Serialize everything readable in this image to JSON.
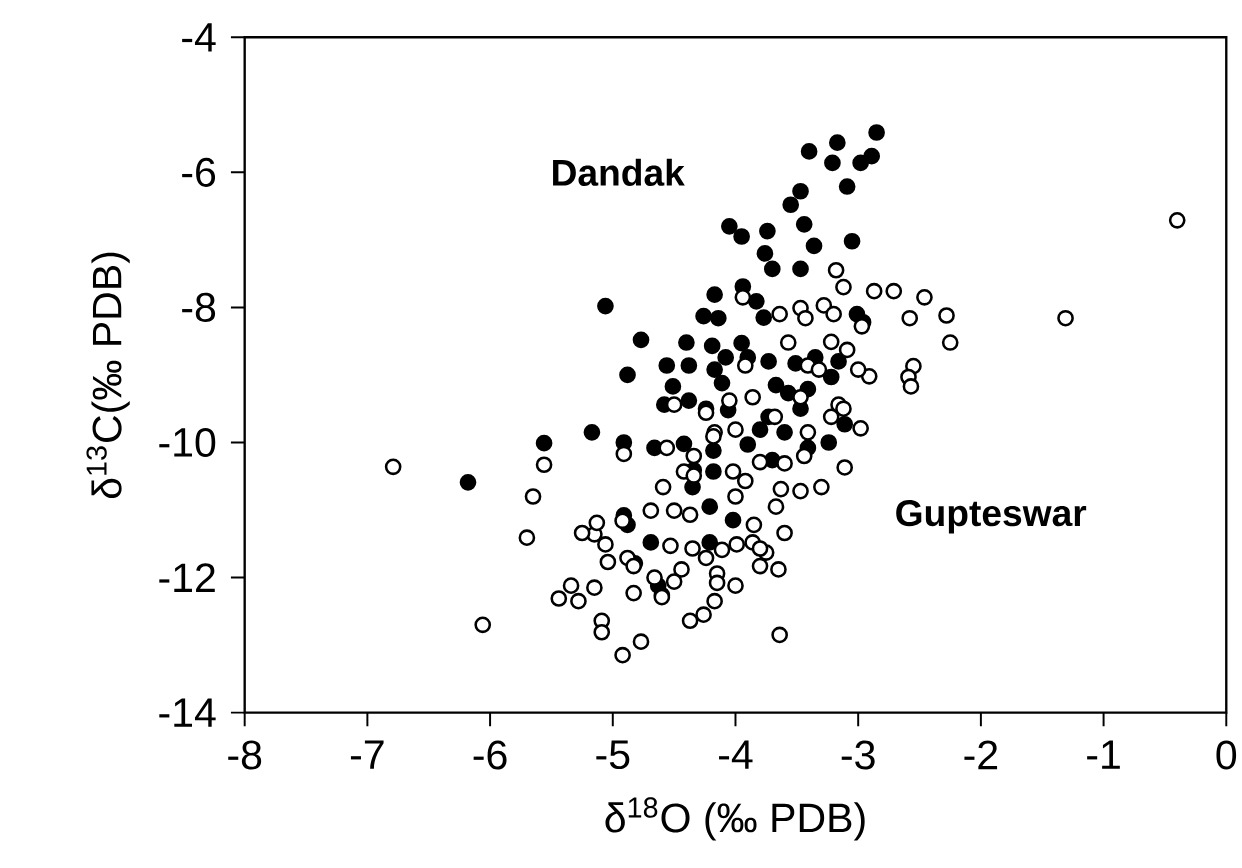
{
  "chart_data": {
    "type": "scatter",
    "xlabel": "δ$^{18}$O (‰ PDB)",
    "ylabel": "δ$^{13}$C(‰ PDB)",
    "xlim": [
      -8,
      0
    ],
    "ylim": [
      -14,
      -4
    ],
    "xticks": [
      -8,
      -7,
      -6,
      -5,
      -4,
      -3,
      -2,
      -1,
      0
    ],
    "yticks": [
      -14,
      -12,
      -10,
      -8,
      -6,
      -4
    ],
    "grid": false,
    "series": [
      {
        "name": "Dandak",
        "color": "#000000",
        "x": [
          -2.85,
          -3.17,
          -3.4,
          -2.89,
          -2.98,
          -3.21,
          -3.09,
          -3.47,
          -3.55,
          -3.44,
          -4.05,
          -3.74,
          -3.95,
          -3.05,
          -3.36,
          -3.76,
          -3.7,
          -3.47,
          -3.94,
          -4.17,
          -5.06,
          -3.83,
          -4.26,
          -4.14,
          -3.77,
          -3.01,
          -2.96,
          -4.77,
          -4.4,
          -4.19,
          -3.95,
          -3.9,
          -4.08,
          -4.56,
          -4.38,
          -4.17,
          -3.73,
          -3.51,
          -3.35,
          -3.16,
          -4.88,
          -4.11,
          -4.51,
          -3.67,
          -3.41,
          -3.22,
          -4.38,
          -4.24,
          -4.06,
          -4.58,
          -3.73,
          -3.47,
          -3.8,
          -3.6,
          -5.17,
          -5.56,
          -4.66,
          -4.42,
          -4.18,
          -3.9,
          -3.41,
          -3.24,
          -6.18,
          -4.34,
          -4.18,
          -4.91,
          -4.88,
          -4.21,
          -4.02,
          -4.69,
          -4.21,
          -4.82,
          -4.63,
          -4.6,
          -4.35,
          -4.91,
          -3.7,
          -3.11,
          -3.57
        ],
        "values": [
          -5.41,
          -5.56,
          -5.69,
          -5.76,
          -5.86,
          -5.86,
          -6.21,
          -6.28,
          -6.48,
          -6.77,
          -6.8,
          -6.87,
          -6.95,
          -7.02,
          -7.09,
          -7.2,
          -7.43,
          -7.43,
          -7.69,
          -7.81,
          -7.98,
          -7.91,
          -8.13,
          -8.16,
          -8.15,
          -8.1,
          -8.22,
          -8.48,
          -8.52,
          -8.57,
          -8.53,
          -8.74,
          -8.74,
          -8.86,
          -8.86,
          -8.92,
          -8.8,
          -8.83,
          -8.74,
          -8.8,
          -9.0,
          -9.12,
          -9.17,
          -9.15,
          -9.21,
          -9.03,
          -9.38,
          -9.5,
          -9.52,
          -9.44,
          -9.62,
          -9.5,
          -9.81,
          -9.85,
          -9.85,
          -10.01,
          -10.08,
          -10.02,
          -10.12,
          -10.03,
          -10.08,
          -10.0,
          -10.59,
          -10.41,
          -10.43,
          -11.08,
          -11.22,
          -10.95,
          -11.15,
          -11.48,
          -11.48,
          -11.79,
          -12.12,
          -12.26,
          -10.66,
          -10.0,
          -10.26,
          -9.73,
          -9.27
        ]
      },
      {
        "name": "Gupteswar",
        "color": "#ffffff",
        "x": [
          -0.4,
          -1.31,
          -3.18,
          -3.12,
          -2.87,
          -2.71,
          -2.46,
          -2.28,
          -2.58,
          -2.25,
          -2.55,
          -2.59,
          -2.57,
          -2.91,
          -2.97,
          -3.28,
          -3.47,
          -3.43,
          -3.64,
          -3.94,
          -3.57,
          -2.98,
          -3.11,
          -3.3,
          -3.47,
          -3.63,
          -3.6,
          -3.65,
          -3.64,
          -3.8,
          -3.75,
          -3.85,
          -4.0,
          -3.92,
          -4.02,
          -4.0,
          -3.86,
          -3.68,
          -3.41,
          -3.22,
          -3.16,
          -3.44,
          -3.6,
          -3.8,
          -4.17,
          -4.34,
          -4.5,
          -4.56,
          -4.59,
          -4.37,
          -4.5,
          -4.69,
          -4.35,
          -4.53,
          -4.24,
          -4.11,
          -3.99,
          -3.86,
          -4.44,
          -4.5,
          -4.66,
          -4.83,
          -4.6,
          -4.15,
          -4.15,
          -4.0,
          -4.17,
          -4.26,
          -4.77,
          -4.92,
          -5.09,
          -5.09,
          -5.15,
          -5.34,
          -5.28,
          -5.44,
          -6.06,
          -5.04,
          -5.06,
          -5.15,
          -5.25,
          -5.13,
          -4.92,
          -4.88,
          -4.83,
          -5.7,
          -5.65,
          -5.56,
          -6.79,
          -4.91,
          -4.42,
          -4.18,
          -4.24,
          -4.05,
          -3.92,
          -3.41,
          -3.09,
          -3.0,
          -3.12,
          -3.22,
          -3.2,
          -3.32,
          -3.47,
          -4.34,
          -3.67,
          -3.8,
          -4.37
        ],
        "values": [
          -6.71,
          -8.16,
          -7.45,
          -7.7,
          -7.76,
          -7.76,
          -7.85,
          -8.12,
          -8.16,
          -8.52,
          -8.87,
          -9.03,
          -9.17,
          -9.02,
          -8.28,
          -7.97,
          -8.01,
          -8.16,
          -8.1,
          -7.85,
          -8.52,
          -9.79,
          -10.37,
          -10.66,
          -10.72,
          -10.69,
          -11.34,
          -11.88,
          -12.85,
          -11.83,
          -11.63,
          -11.22,
          -10.8,
          -10.57,
          -10.43,
          -9.81,
          -9.33,
          -9.62,
          -9.85,
          -9.62,
          -9.44,
          -10.2,
          -10.31,
          -10.29,
          -9.85,
          -10.2,
          -9.44,
          -10.08,
          -10.66,
          -11.07,
          -11.01,
          -11.01,
          -11.57,
          -11.53,
          -11.71,
          -11.59,
          -11.51,
          -11.48,
          -11.88,
          -12.06,
          -12.0,
          -12.23,
          -12.29,
          -11.94,
          -12.08,
          -12.12,
          -12.35,
          -12.55,
          -12.95,
          -13.15,
          -12.64,
          -12.81,
          -12.15,
          -12.12,
          -12.35,
          -12.31,
          -12.7,
          -11.77,
          -11.51,
          -11.36,
          -11.34,
          -11.19,
          -11.16,
          -11.71,
          -11.83,
          -11.41,
          -10.8,
          -10.33,
          -10.36,
          -10.17,
          -10.43,
          -9.91,
          -9.56,
          -9.38,
          -8.86,
          -8.86,
          -8.63,
          -8.92,
          -9.5,
          -8.51,
          -8.1,
          -8.92,
          -9.33,
          -10.49,
          -10.95,
          -11.57,
          -12.64
        ]
      }
    ]
  }
}
